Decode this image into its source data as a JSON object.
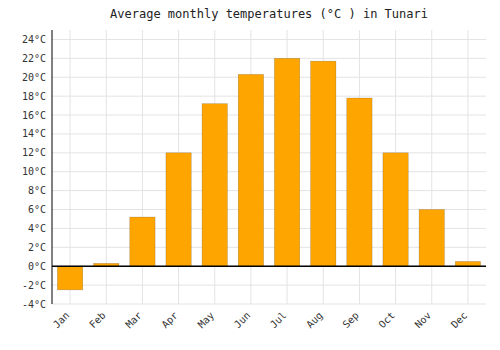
{
  "chart_data": {
    "type": "bar",
    "title": "Average monthly temperatures (°C ) in Tunari",
    "categories": [
      "Jan",
      "Feb",
      "Mar",
      "Apr",
      "May",
      "Jun",
      "Jul",
      "Aug",
      "Sep",
      "Oct",
      "Nov",
      "Dec"
    ],
    "values": [
      -2.5,
      0.3,
      5.2,
      12.0,
      17.2,
      20.3,
      22.0,
      21.7,
      17.8,
      12.0,
      6.0,
      0.5
    ],
    "color": "#FFA500",
    "ylim": [
      -4,
      25
    ],
    "yticks": [
      {
        "value": -4,
        "label": "-4°C"
      },
      {
        "value": -2,
        "label": "-2°C"
      },
      {
        "value": 0,
        "label": "0°C"
      },
      {
        "value": 2,
        "label": "2°C"
      },
      {
        "value": 4,
        "label": "4°C"
      },
      {
        "value": 6,
        "label": "6°C"
      },
      {
        "value": 8,
        "label": "8°C"
      },
      {
        "value": 10,
        "label": "10°C"
      },
      {
        "value": 12,
        "label": "12°C"
      },
      {
        "value": 14,
        "label": "14°C"
      },
      {
        "value": 16,
        "label": "16°C"
      },
      {
        "value": 18,
        "label": "18°C"
      },
      {
        "value": 20,
        "label": "20°C"
      },
      {
        "value": 22,
        "label": "22°C"
      },
      {
        "value": 24,
        "label": "24°C"
      }
    ],
    "grid": true
  }
}
